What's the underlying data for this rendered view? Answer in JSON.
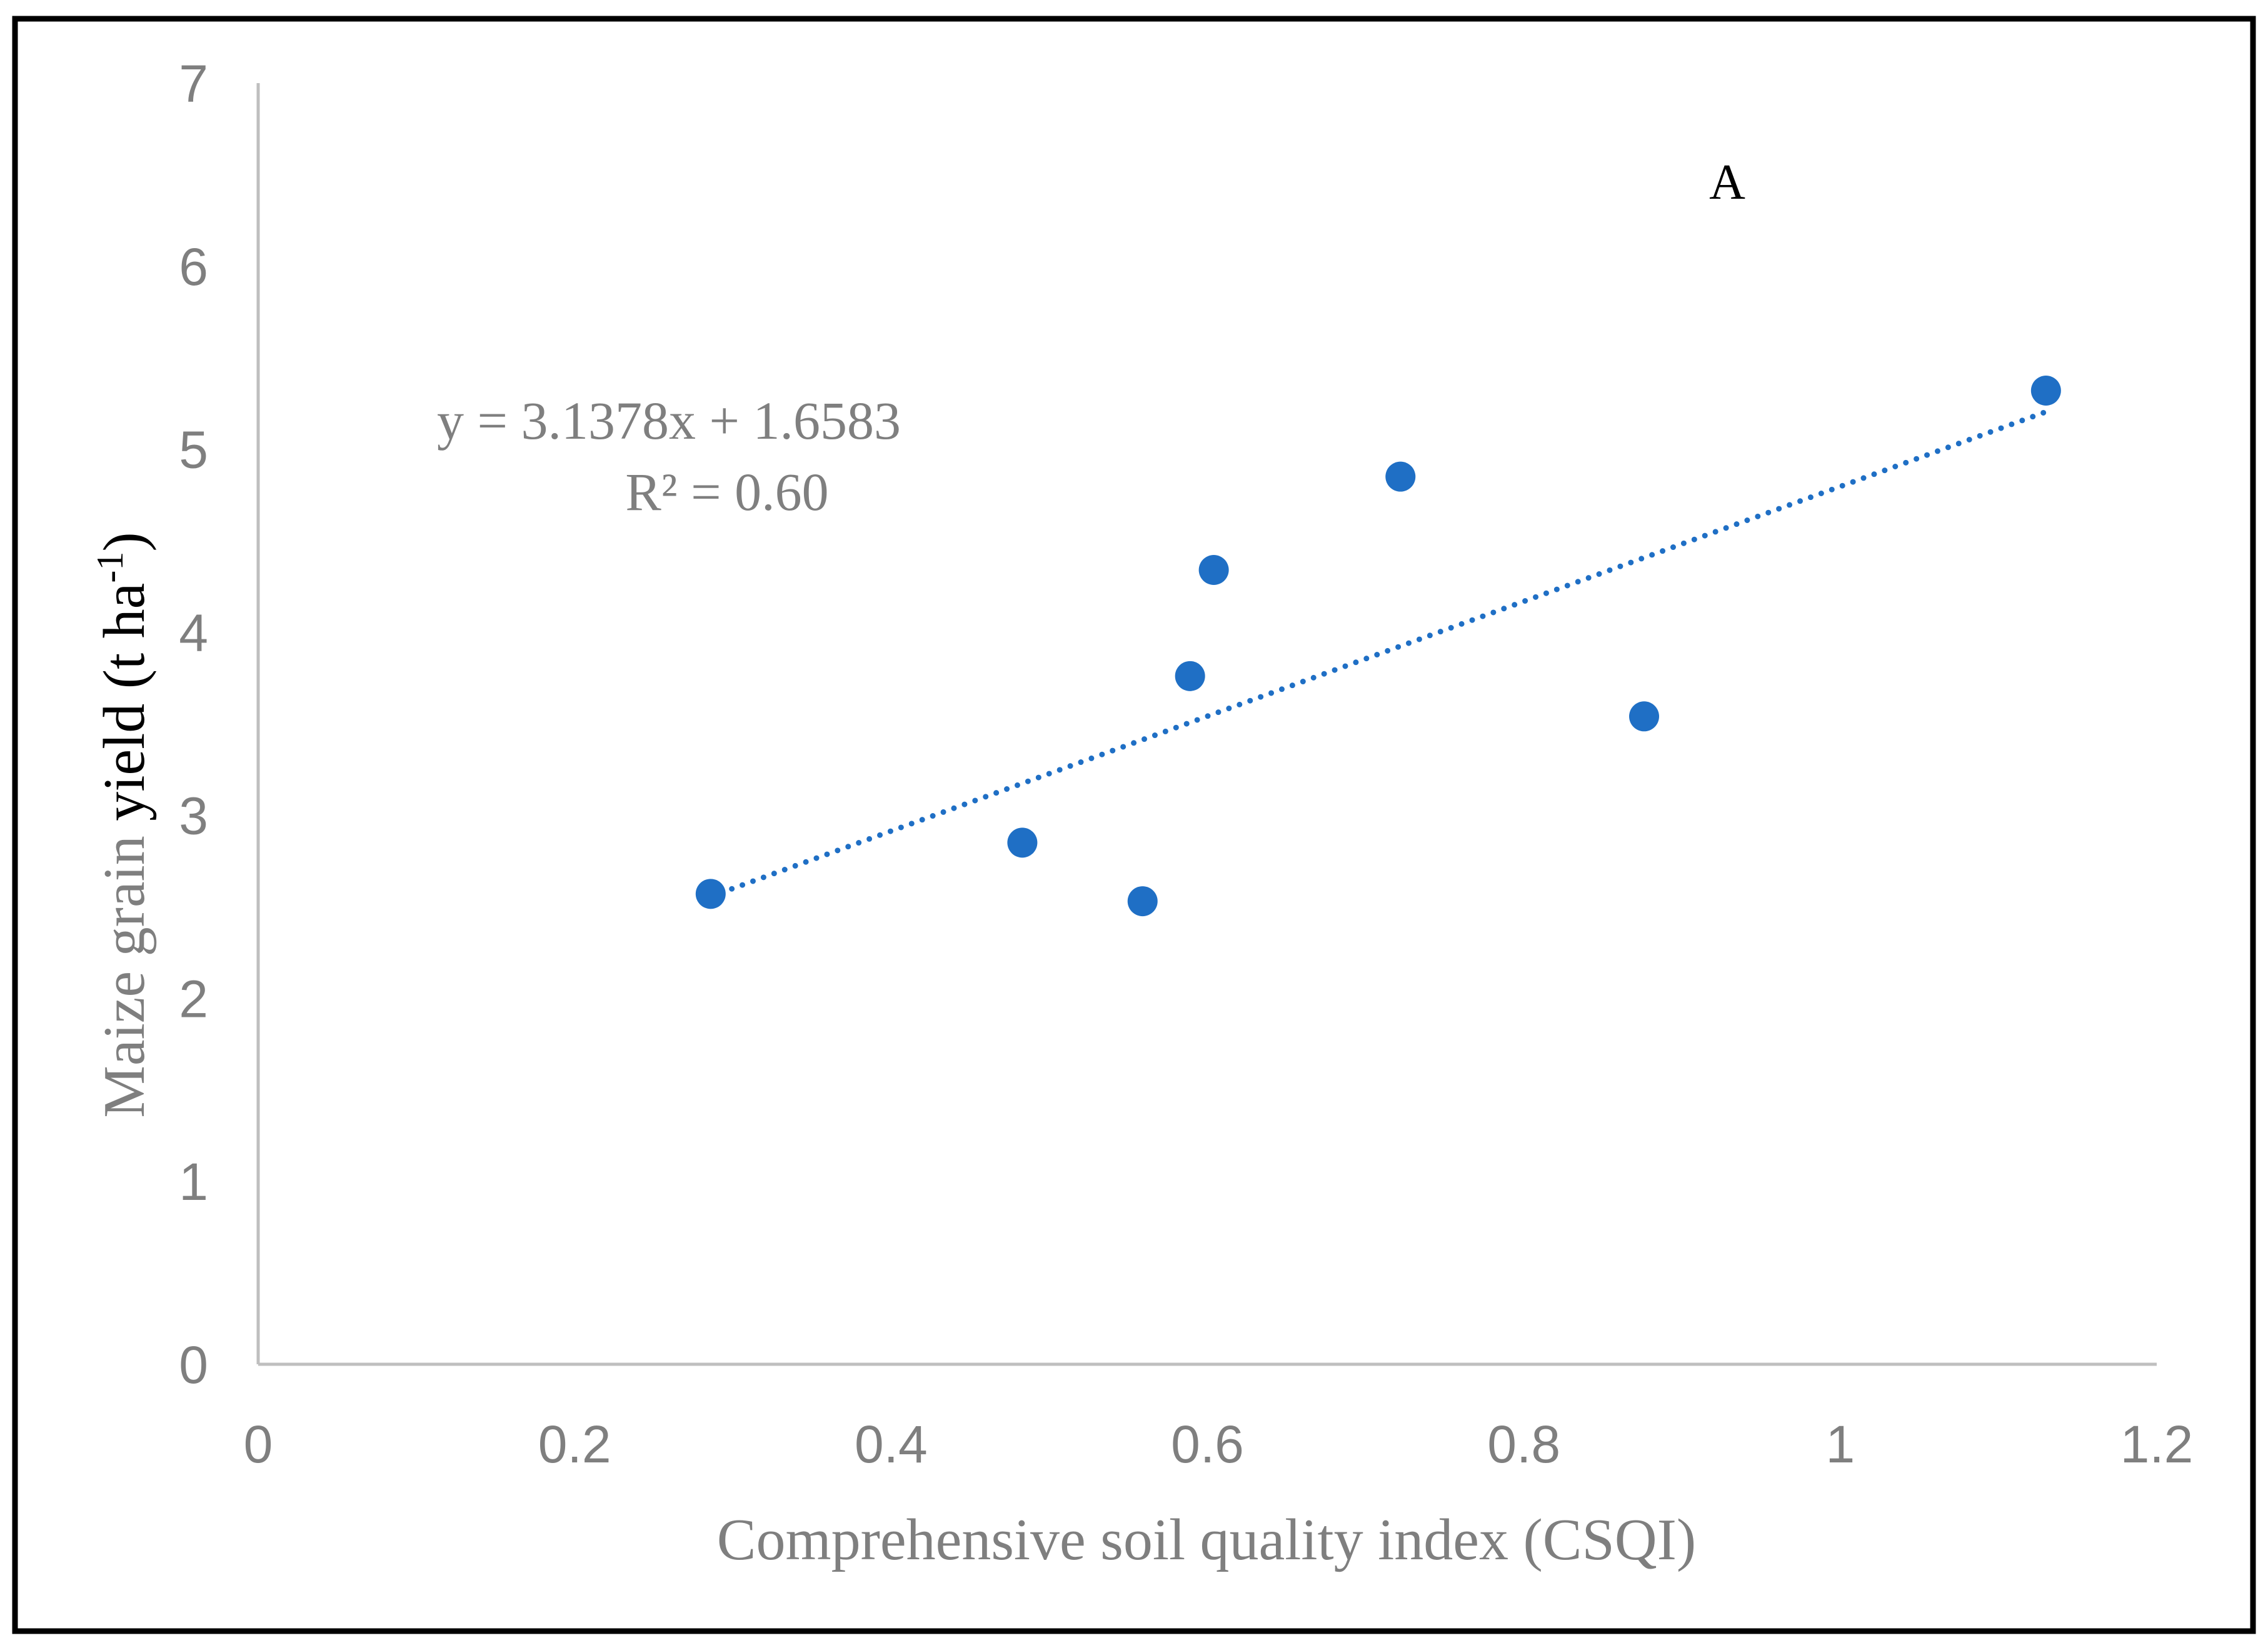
{
  "chart_data": {
    "type": "scatter",
    "panel_label": "A",
    "xlabel": "Comprehensive soil quality index (CSQI)",
    "ylabel": {
      "part1": "Maize grain ",
      "part2": "yield",
      "part3": " (t ha",
      "sup": "-1",
      "part4": ")"
    },
    "xlim": [
      0,
      1.2
    ],
    "ylim": [
      0,
      7
    ],
    "x_ticks": [
      0,
      0.2,
      0.4,
      0.6,
      0.8,
      1,
      1.2
    ],
    "x_tick_labels": [
      "0",
      "0.2",
      "0.4",
      "0.6",
      "0.8",
      "1",
      "1.2"
    ],
    "y_ticks": [
      0,
      1,
      2,
      3,
      4,
      5,
      6,
      7
    ],
    "y_tick_labels": [
      "0",
      "1",
      "2",
      "3",
      "4",
      "5",
      "6",
      "7"
    ],
    "grid": false,
    "series": [
      {
        "name": "Maize grain yield",
        "color": "#1f6fc5",
        "points": [
          {
            "x": 0.286,
            "y": 2.57
          },
          {
            "x": 0.483,
            "y": 2.85
          },
          {
            "x": 0.559,
            "y": 2.53
          },
          {
            "x": 0.589,
            "y": 3.76
          },
          {
            "x": 0.604,
            "y": 4.34
          },
          {
            "x": 0.722,
            "y": 4.85
          },
          {
            "x": 0.876,
            "y": 3.54
          },
          {
            "x": 1.13,
            "y": 5.32
          }
        ]
      }
    ],
    "trendline": {
      "type": "linear",
      "slope": 3.1378,
      "intercept": 1.6583,
      "x_range": [
        0.286,
        1.13
      ],
      "color": "#1f6fc5",
      "style": "dotted",
      "equation_label": "y = 3.1378x + 1.6583",
      "r2_label": "R² = 0.60"
    },
    "axis_color": "#bfbfbf",
    "text_color": "#7f7f7f",
    "frame_color": "#000000"
  }
}
